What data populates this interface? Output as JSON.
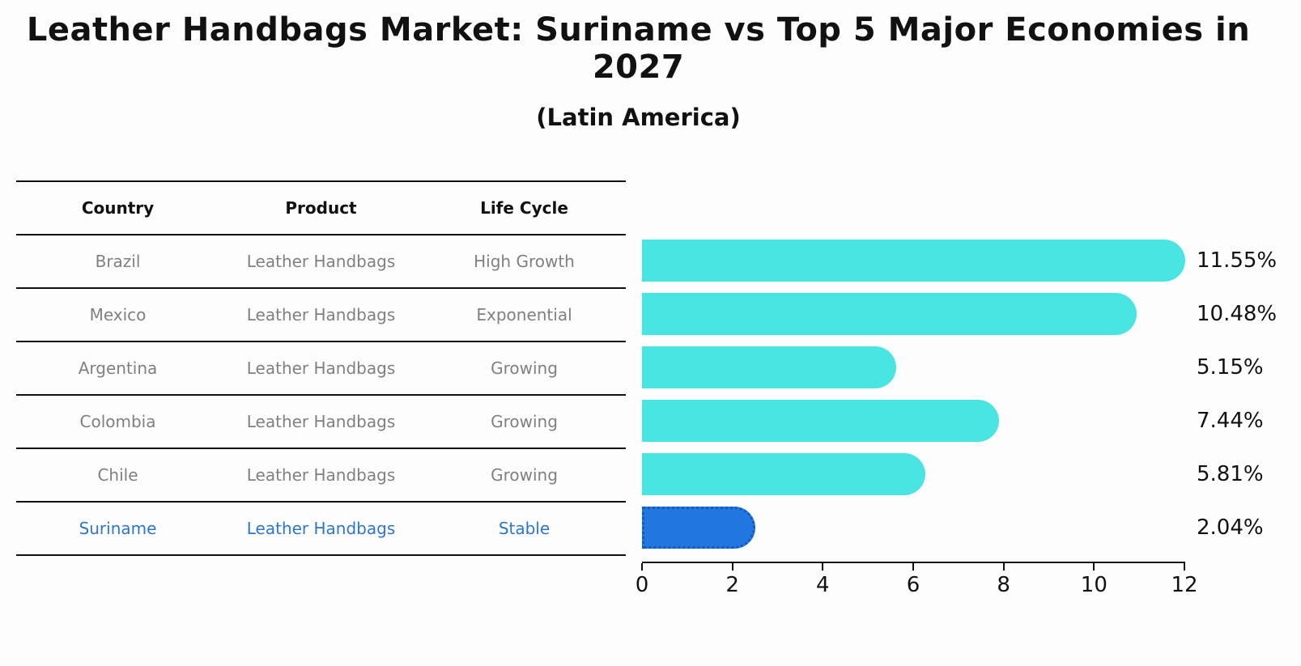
{
  "title": "Leather Handbags Market: Suriname vs Top 5 Major Economies in 2027",
  "subtitle": "(Latin America)",
  "table": {
    "headers": [
      "Country",
      "Product",
      "Life Cycle"
    ],
    "rows": [
      {
        "country": "Brazil",
        "product": "Leather Handbags",
        "life_cycle": "High Growth",
        "highlight": false
      },
      {
        "country": "Mexico",
        "product": "Leather Handbags",
        "life_cycle": "Exponential",
        "highlight": false
      },
      {
        "country": "Argentina",
        "product": "Leather Handbags",
        "life_cycle": "Growing",
        "highlight": false
      },
      {
        "country": "Colombia",
        "product": "Leather Handbags",
        "life_cycle": "Growing",
        "highlight": false
      },
      {
        "country": "Chile",
        "product": "Leather Handbags",
        "life_cycle": "Growing",
        "highlight": false
      },
      {
        "country": "Suriname",
        "product": "Leather Handbags",
        "life_cycle": "Stable",
        "highlight": true
      }
    ]
  },
  "chart_data": {
    "type": "bar",
    "orientation": "horizontal",
    "title": "Leather Handbags Market: Suriname vs Top 5 Major Economies in 2027",
    "subtitle": "(Latin America)",
    "categories": [
      "Brazil",
      "Mexico",
      "Argentina",
      "Colombia",
      "Chile",
      "Suriname"
    ],
    "values": [
      11.55,
      10.48,
      5.15,
      7.44,
      5.81,
      2.04
    ],
    "value_labels": [
      "11.55%",
      "10.48%",
      "5.15%",
      "7.44%",
      "5.81%",
      "2.04%"
    ],
    "xlabel": "",
    "ylabel": "",
    "xlim": [
      0,
      12
    ],
    "x_ticks": [
      0,
      2,
      4,
      6,
      8,
      10,
      12
    ],
    "grid": false,
    "legend": false,
    "bar_color": "#48E5E3",
    "highlight_index": 5,
    "highlight_color": "#2176E0",
    "highlight_border_color": "#1259C4"
  },
  "colors": {
    "title_text": "#111111",
    "header_text": "#111111",
    "row_text": "#808080",
    "highlight_text": "#2e77c8",
    "axis": "#111111"
  }
}
